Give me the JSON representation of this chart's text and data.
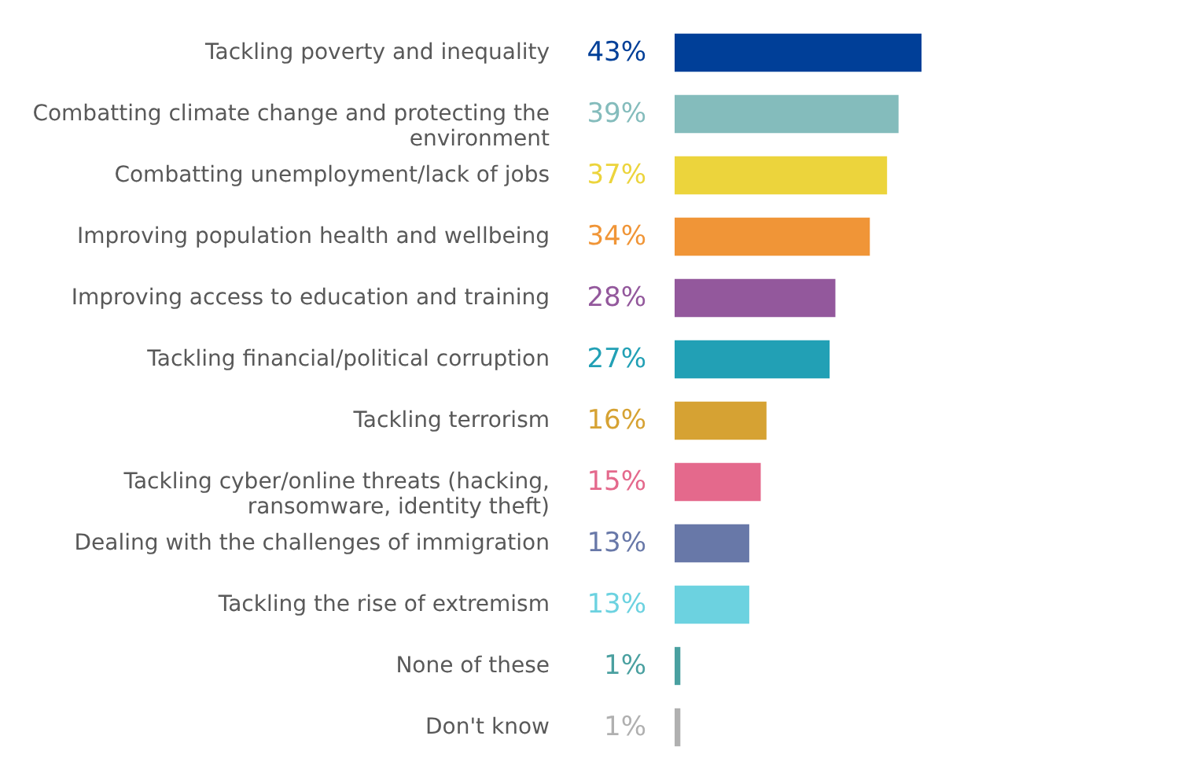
{
  "chart_data": {
    "type": "bar",
    "orientation": "horizontal",
    "categories": [
      "Tackling poverty and inequality",
      "Combatting climate change and protecting the environment",
      "Combatting unemployment/lack of jobs",
      "Improving population health and wellbeing",
      "Improving access to education and training",
      "Tackling financial/political corruption",
      "Tackling terrorism",
      "Tackling cyber/online threats (hacking, ransomware, identity theft)",
      "Dealing with the challenges of immigration",
      "Tackling the rise of extremism",
      "None of these",
      "Don't know"
    ],
    "values": [
      43,
      39,
      37,
      34,
      28,
      27,
      16,
      15,
      13,
      13,
      1,
      1
    ],
    "value_labels": [
      "43%",
      "39%",
      "37%",
      "34%",
      "28%",
      "27%",
      "16%",
      "15%",
      "13%",
      "13%",
      "1%",
      "1%"
    ],
    "colors": [
      "#003f98",
      "#84bcbc",
      "#ecd43c",
      "#f09537",
      "#93589c",
      "#22a0b5",
      "#d6a233",
      "#e4698c",
      "#6878a8",
      "#6cd2e0",
      "#4aa0a0",
      "#b0b0b0"
    ]
  }
}
